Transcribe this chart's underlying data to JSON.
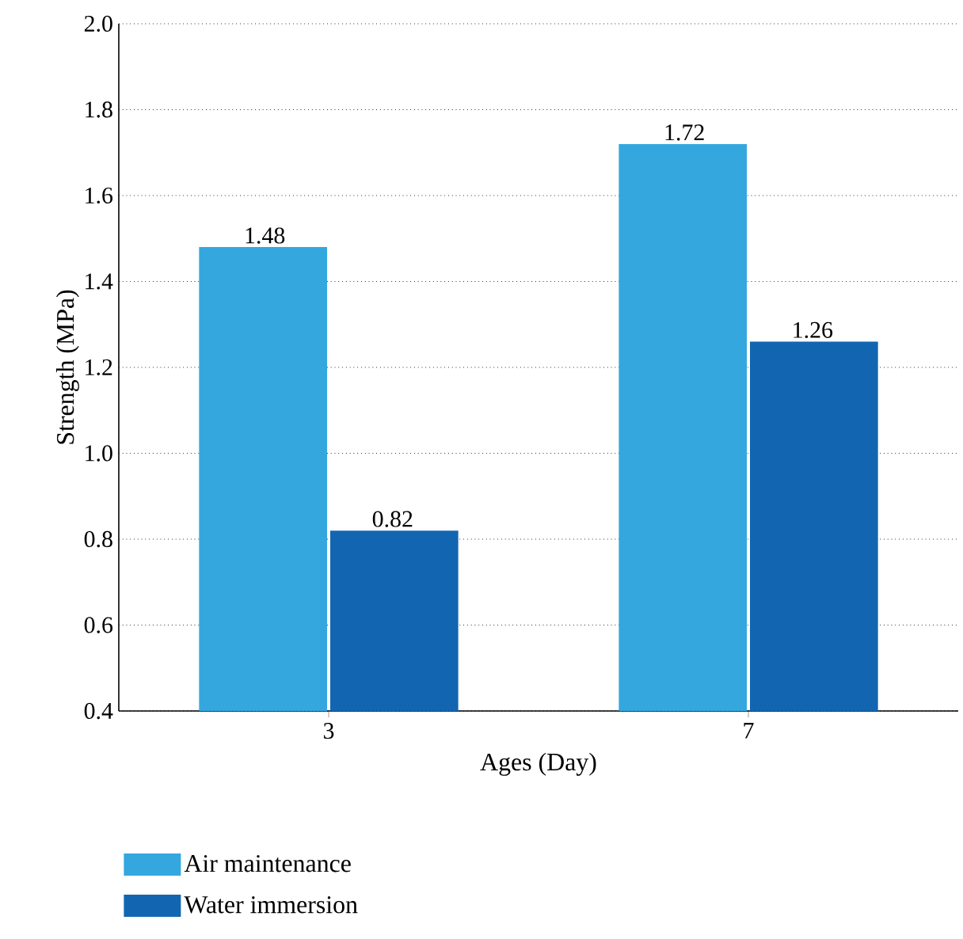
{
  "chart_data": {
    "type": "bar",
    "xlabel": "Ages (Day)",
    "ylabel": "Strength (MPa)",
    "categories": [
      "3",
      "7"
    ],
    "series": [
      {
        "name": "Air maintenance",
        "color": "#34a7df",
        "values": [
          1.48,
          1.72
        ]
      },
      {
        "name": "Water immersion",
        "color": "#1266b1",
        "values": [
          0.82,
          1.26
        ]
      }
    ],
    "ylim": [
      0.4,
      2.0
    ],
    "yticks": [
      0.4,
      0.6,
      0.8,
      {
        "value": 1.0,
        "label": "1.0"
      },
      1.2,
      1.4,
      1.6,
      1.8,
      {
        "value": 2.0,
        "label": "2.0"
      }
    ],
    "grid": "y",
    "legend": "bottom left",
    "data_labels": true
  }
}
